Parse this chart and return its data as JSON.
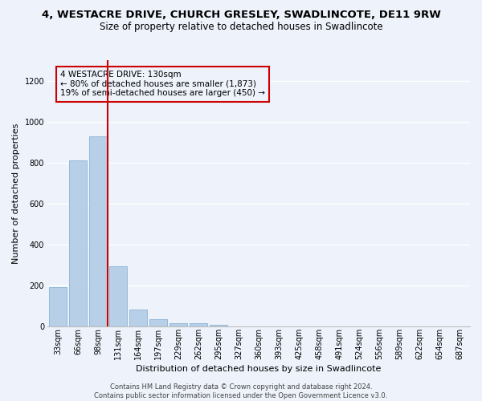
{
  "title": "4, WESTACRE DRIVE, CHURCH GRESLEY, SWADLINCOTE, DE11 9RW",
  "subtitle": "Size of property relative to detached houses in Swadlincote",
  "xlabel": "Distribution of detached houses by size in Swadlincote",
  "ylabel": "Number of detached properties",
  "bar_color": "#b8cfe8",
  "bar_edge_color": "#7aaad0",
  "categories": [
    "33sqm",
    "66sqm",
    "98sqm",
    "131sqm",
    "164sqm",
    "197sqm",
    "229sqm",
    "262sqm",
    "295sqm",
    "327sqm",
    "360sqm",
    "393sqm",
    "425sqm",
    "458sqm",
    "491sqm",
    "524sqm",
    "556sqm",
    "589sqm",
    "622sqm",
    "654sqm",
    "687sqm"
  ],
  "values": [
    193,
    810,
    930,
    295,
    85,
    35,
    18,
    15,
    10,
    0,
    0,
    0,
    0,
    0,
    0,
    0,
    0,
    0,
    0,
    0,
    0
  ],
  "ylim": [
    0,
    1300
  ],
  "yticks": [
    0,
    200,
    400,
    600,
    800,
    1000,
    1200
  ],
  "vline_after_bar": 2,
  "marker_label": "4 WESTACRE DRIVE: 130sqm",
  "annotation_line1": "← 80% of detached houses are smaller (1,873)",
  "annotation_line2": "19% of semi-detached houses are larger (450) →",
  "footer_line1": "Contains HM Land Registry data © Crown copyright and database right 2024.",
  "footer_line2": "Contains public sector information licensed under the Open Government Licence v3.0.",
  "background_color": "#edf2fb",
  "grid_color": "#ffffff",
  "vline_color": "#cc0000",
  "box_edge_color": "#cc0000",
  "title_fontsize": 9.5,
  "subtitle_fontsize": 8.5,
  "axis_label_fontsize": 8,
  "tick_fontsize": 7,
  "annotation_fontsize": 7.5,
  "footer_fontsize": 6
}
